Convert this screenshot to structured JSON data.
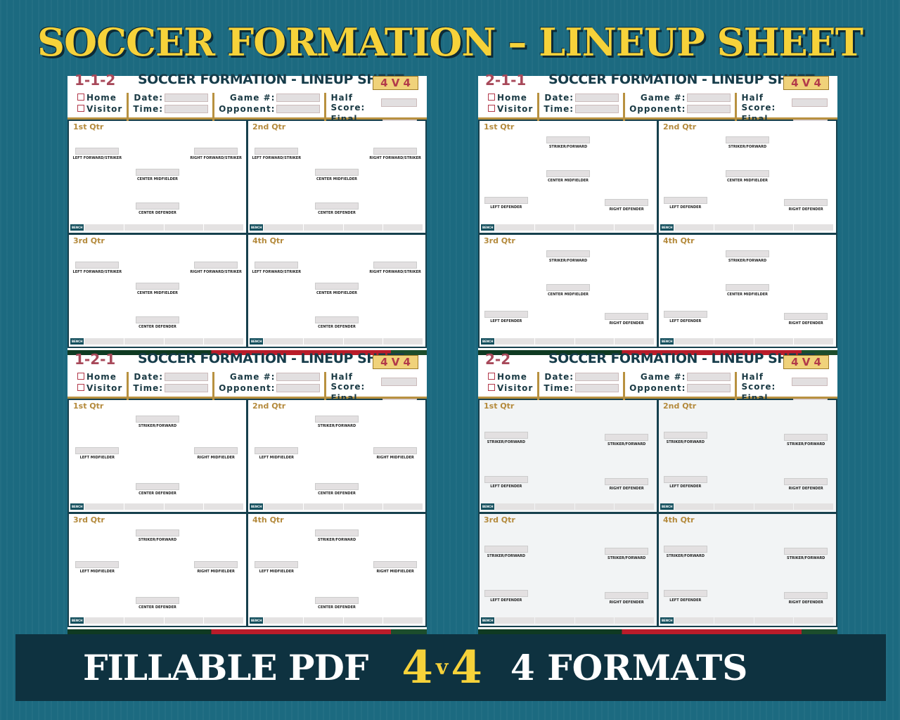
{
  "title": "SOCCER FORMATION – LINEUP SHEET",
  "sheet_common": {
    "title": "SOCCER FORMATION - LINEUP SHEET",
    "badge": "4 V 4",
    "home": "Home",
    "visitor": "Visitor",
    "date": "Date:",
    "time": "Time:",
    "game": "Game #:",
    "opponent": "Opponent:",
    "half": "Half Score:",
    "final": "Final Score:",
    "bench": "BENCH",
    "quarters": [
      "1st Qtr",
      "2nd Qtr",
      "3rd Qtr",
      "4th Qtr"
    ]
  },
  "sheets": [
    {
      "formation": "1-1-2",
      "positions": [
        "LEFT FORWARD/STRIKER",
        "RIGHT FORWARD/STRIKER",
        "CENTER MIDFIELDER",
        "CENTER DEFENDER"
      ]
    },
    {
      "formation": "2-1-1",
      "positions": [
        "STRIKER/FORWARD",
        "CENTER MIDFIELDER",
        "LEFT DEFENDER",
        "RIGHT DEFENDER"
      ]
    },
    {
      "formation": "1-2-1",
      "positions": [
        "STRIKER/FORWARD",
        "LEFT MIDFIELDER",
        "RIGHT MIDFIELDER",
        "CENTER DEFENDER"
      ]
    },
    {
      "formation": "2-2",
      "positions": [
        "STRIKER/FORWARD",
        "STRIKER/FORWARD",
        "LEFT DEFENDER",
        "RIGHT DEFENDER"
      ]
    }
  ],
  "banner": {
    "fillable": "FILLABLE PDF",
    "num1": "4",
    "v": "v",
    "num2": "4",
    "formats": "4  FORMATS"
  },
  "colors": {
    "background": "#1c6a80",
    "title": "#f6d23a",
    "banner": "#0e3240"
  }
}
